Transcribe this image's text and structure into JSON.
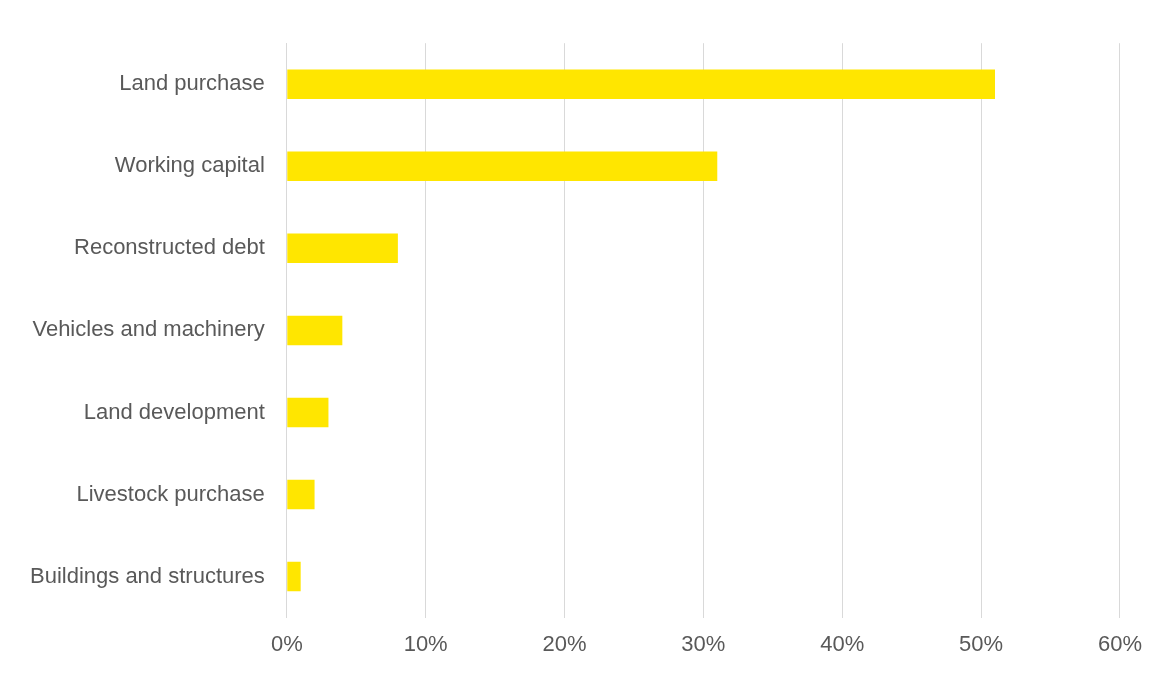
{
  "chart_data": {
    "type": "bar",
    "orientation": "horizontal",
    "categories": [
      "Land purchase",
      "Working capital",
      "Reconstructed debt",
      "Vehicles and machinery",
      "Land development",
      "Livestock purchase",
      "Buildings and structures"
    ],
    "values": [
      51,
      31,
      8,
      4,
      3,
      2,
      1
    ],
    "color": "#ffe600",
    "xlim": [
      0,
      60
    ],
    "xticks": [
      {
        "value": 0,
        "label": "0%"
      },
      {
        "value": 10,
        "label": "10%"
      },
      {
        "value": 20,
        "label": "20%"
      },
      {
        "value": 30,
        "label": "30%"
      },
      {
        "value": 40,
        "label": "40%"
      },
      {
        "value": 50,
        "label": "50%"
      },
      {
        "value": 60,
        "label": "60%"
      }
    ],
    "grid": "x",
    "legend": false
  }
}
